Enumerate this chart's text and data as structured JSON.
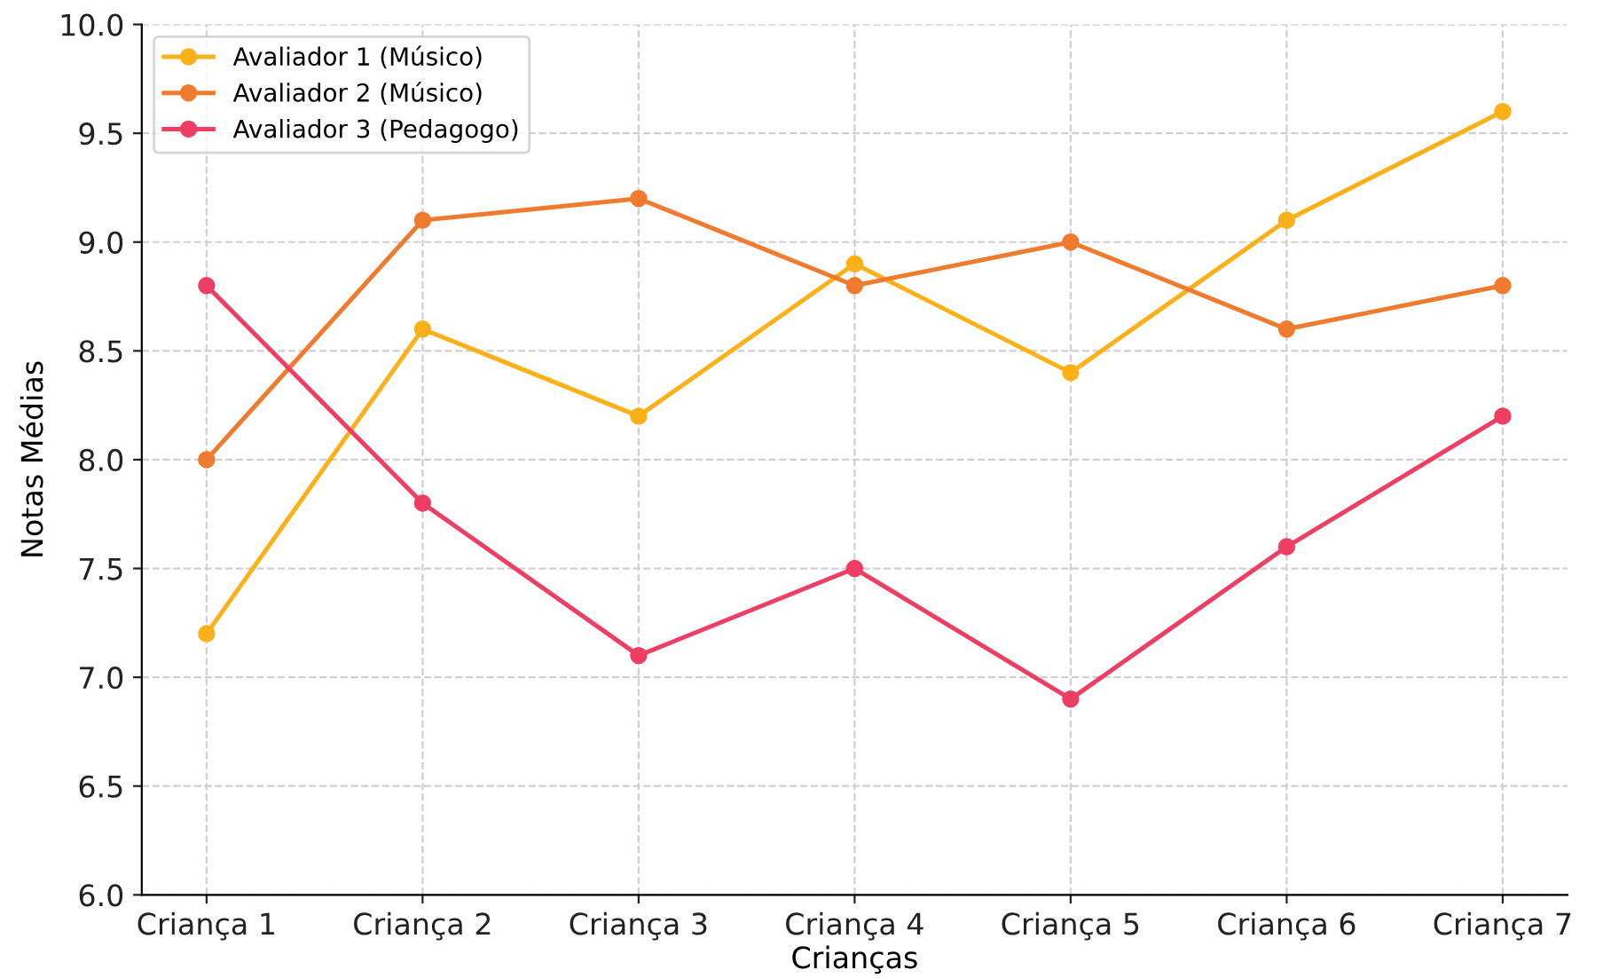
{
  "chart_data": {
    "type": "line",
    "xlabel": "Crianças",
    "ylabel": "Notas Médias",
    "categories": [
      "Criança 1",
      "Criança 2",
      "Criança 3",
      "Criança 4",
      "Criança 5",
      "Criança 6",
      "Criança 7"
    ],
    "series": [
      {
        "name": "Avaliador 1 (Músico)",
        "color": "#fbb117",
        "values": [
          7.2,
          8.6,
          8.2,
          8.9,
          8.4,
          9.1,
          9.6
        ]
      },
      {
        "name": "Avaliador 2 (Músico)",
        "color": "#f07a2e",
        "values": [
          8.0,
          9.1,
          9.2,
          8.8,
          9.0,
          8.6,
          8.8
        ]
      },
      {
        "name": "Avaliador 3 (Pedagogo)",
        "color": "#ef3e63",
        "values": [
          8.8,
          7.8,
          7.1,
          7.5,
          6.9,
          7.6,
          8.2
        ]
      }
    ],
    "ylim": [
      6.0,
      10.0
    ],
    "yticks": [
      {
        "value": 6.0,
        "label": "6.0"
      },
      {
        "value": 6.5,
        "label": "6.5"
      },
      {
        "value": 7.0,
        "label": "7.0"
      },
      {
        "value": 7.5,
        "label": "7.5"
      },
      {
        "value": 8.0,
        "label": "8.0"
      },
      {
        "value": 8.5,
        "label": "8.5"
      },
      {
        "value": 9.0,
        "label": "9.0"
      },
      {
        "value": 9.5,
        "label": "9.5"
      },
      {
        "value": 10.0,
        "label": "10.0"
      }
    ],
    "grid": true,
    "legend": "top left",
    "marker": "circle",
    "line_style": "solid"
  }
}
